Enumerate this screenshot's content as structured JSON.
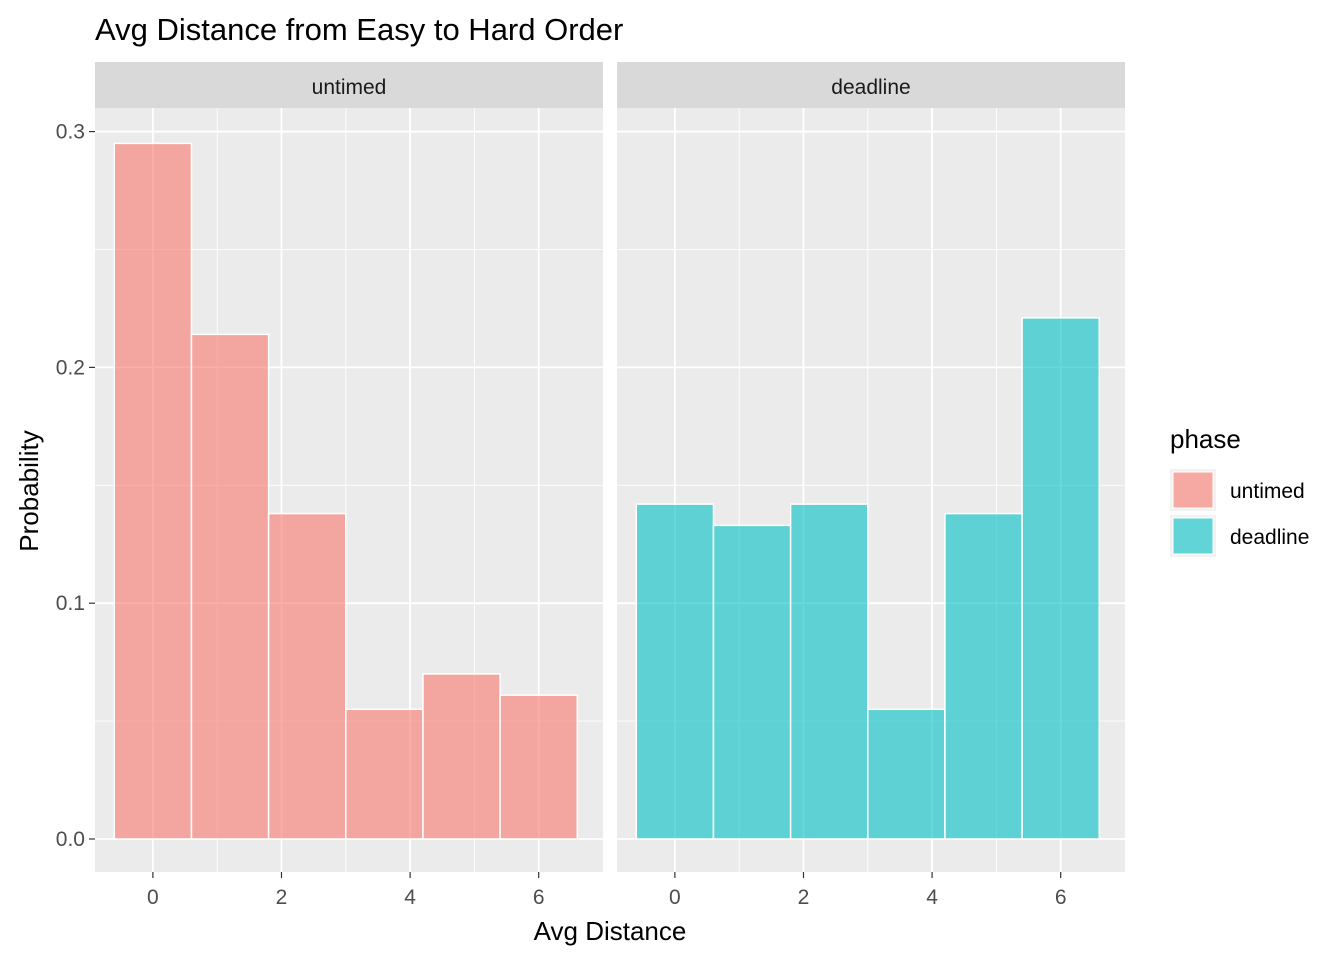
{
  "chart_data": {
    "type": "bar",
    "title": "Avg Distance from Easy to Hard Order",
    "xlabel": "Avg Distance",
    "ylabel": "Probability",
    "xlim": [
      -0.9,
      7.0
    ],
    "ylim": [
      -0.014,
      0.31
    ],
    "x_ticks": [
      0,
      2,
      4,
      6
    ],
    "y_ticks": [
      0.0,
      0.1,
      0.2,
      0.3
    ],
    "x_tick_labels": [
      "0",
      "2",
      "4",
      "6"
    ],
    "y_tick_labels": [
      "0.0",
      "0.1",
      "0.2",
      "0.3"
    ],
    "bin_width": 1.2,
    "grid": true,
    "legend": {
      "title": "phase",
      "position": "right",
      "entries": [
        {
          "label": "untimed",
          "color": "#F8766D"
        },
        {
          "label": "deadline",
          "color": "#00BFC4"
        }
      ]
    },
    "panels": [
      {
        "strip": "untimed",
        "color": "#F8766D",
        "bins": [
          {
            "xmin": -0.6,
            "xmax": 0.6,
            "y": 0.295
          },
          {
            "xmin": 0.6,
            "xmax": 1.8,
            "y": 0.214
          },
          {
            "xmin": 1.8,
            "xmax": 3.0,
            "y": 0.138
          },
          {
            "xmin": 3.0,
            "xmax": 4.2,
            "y": 0.055
          },
          {
            "xmin": 4.2,
            "xmax": 5.4,
            "y": 0.07
          },
          {
            "xmin": 5.4,
            "xmax": 6.6,
            "y": 0.061
          }
        ]
      },
      {
        "strip": "deadline",
        "color": "#00BFC4",
        "bins": [
          {
            "xmin": -0.6,
            "xmax": 0.6,
            "y": 0.142
          },
          {
            "xmin": 0.6,
            "xmax": 1.8,
            "y": 0.133
          },
          {
            "xmin": 1.8,
            "xmax": 3.0,
            "y": 0.142
          },
          {
            "xmin": 3.0,
            "xmax": 4.2,
            "y": 0.055
          },
          {
            "xmin": 4.2,
            "xmax": 5.4,
            "y": 0.138
          },
          {
            "xmin": 5.4,
            "xmax": 6.6,
            "y": 0.221
          }
        ]
      }
    ]
  }
}
